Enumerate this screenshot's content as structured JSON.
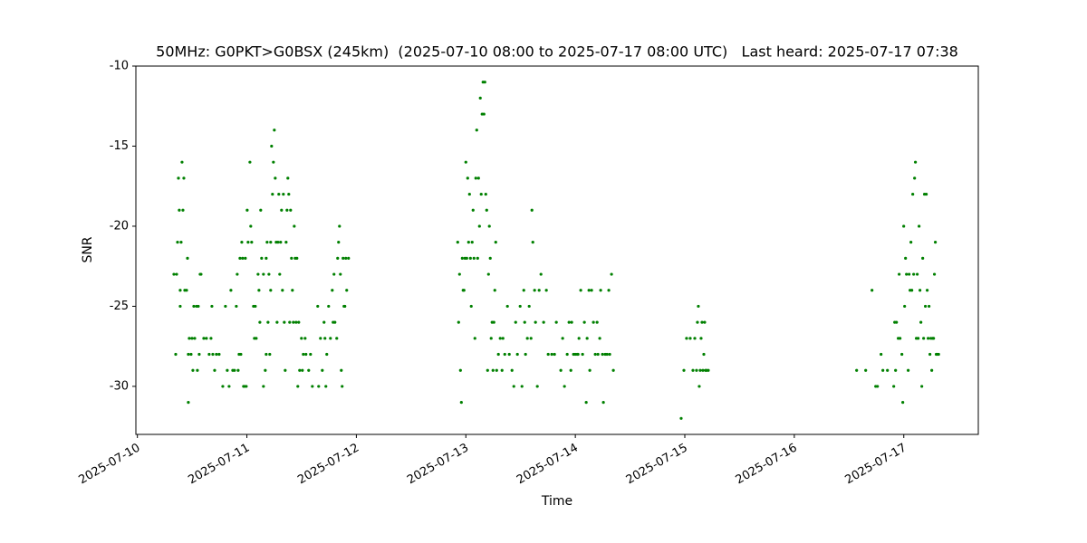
{
  "chart_data": {
    "type": "scatter",
    "title": "50MHz: G0PKT>G0BSX (245km)  (2025-07-10 08:00 to 2025-07-17 08:00 UTC)   Last heard: 2025-07-17 07:38",
    "x_label": "Time",
    "y_label": "SNR",
    "color": "#008000",
    "grid": false,
    "xlim": [
      "2025-07-09 23:40",
      "2025-07-17 16:20"
    ],
    "xticks": [
      "2025-07-10",
      "2025-07-11",
      "2025-07-12",
      "2025-07-13",
      "2025-07-14",
      "2025-07-15",
      "2025-07-16",
      "2025-07-17"
    ],
    "ylim": [
      -33,
      -10
    ],
    "yticks": [
      -30,
      -25,
      -20,
      -15,
      -10
    ],
    "x": [
      "2025-07-10 08:00",
      "2025-07-10 08:24",
      "2025-07-10 08:36",
      "2025-07-10 08:48",
      "2025-07-10 09:00",
      "2025-07-10 09:11",
      "2025-07-10 09:23",
      "2025-07-10 09:23",
      "2025-07-10 09:35",
      "2025-07-10 09:47",
      "2025-07-10 09:59",
      "2025-07-10 10:11",
      "2025-07-10 10:23",
      "2025-07-10 10:47",
      "2025-07-10 10:59",
      "2025-07-10 11:10",
      "2025-07-10 11:10",
      "2025-07-10 11:22",
      "2025-07-10 11:46",
      "2025-07-10 11:58",
      "2025-07-10 12:10",
      "2025-07-10 12:22",
      "2025-07-10 12:34",
      "2025-07-10 12:58",
      "2025-07-10 13:09",
      "2025-07-10 13:21",
      "2025-07-10 13:33",
      "2025-07-10 13:45",
      "2025-07-10 13:57",
      "2025-07-10 14:33",
      "2025-07-10 15:08",
      "2025-07-10 15:44",
      "2025-07-10 16:08",
      "2025-07-10 16:20",
      "2025-07-10 16:32",
      "2025-07-10 16:56",
      "2025-07-10 17:19",
      "2025-07-10 17:55",
      "2025-07-10 18:43",
      "2025-07-10 19:18",
      "2025-07-10 19:42",
      "2025-07-10 20:06",
      "2025-07-10 20:30",
      "2025-07-10 20:54",
      "2025-07-10 21:17",
      "2025-07-10 21:41",
      "2025-07-10 21:53",
      "2025-07-10 22:05",
      "2025-07-10 22:17",
      "2025-07-10 22:29",
      "2025-07-10 22:41",
      "2025-07-10 22:53",
      "2025-07-10 23:04",
      "2025-07-10 23:16",
      "2025-07-10 23:28",
      "2025-07-10 23:40",
      "2025-07-10 23:52",
      "2025-07-11 00:04",
      "2025-07-11 00:16",
      "2025-07-11 00:40",
      "2025-07-11 00:51",
      "2025-07-11 01:03",
      "2025-07-11 01:27",
      "2025-07-11 01:39",
      "2025-07-11 01:51",
      "2025-07-11 02:03",
      "2025-07-11 02:27",
      "2025-07-11 02:39",
      "2025-07-11 02:51",
      "2025-07-11 03:02",
      "2025-07-11 03:14",
      "2025-07-11 03:38",
      "2025-07-11 03:38",
      "2025-07-11 04:02",
      "2025-07-11 04:14",
      "2025-07-11 04:14",
      "2025-07-11 04:26",
      "2025-07-11 04:38",
      "2025-07-11 04:50",
      "2025-07-11 05:01",
      "2025-07-11 05:13",
      "2025-07-11 05:13",
      "2025-07-11 05:25",
      "2025-07-11 05:37",
      "2025-07-11 05:49",
      "2025-07-11 06:01",
      "2025-07-11 06:13",
      "2025-07-11 06:25",
      "2025-07-11 06:37",
      "2025-07-11 06:49",
      "2025-07-11 07:00",
      "2025-07-11 07:12",
      "2025-07-11 07:24",
      "2025-07-11 07:36",
      "2025-07-11 07:48",
      "2025-07-11 08:00",
      "2025-07-11 08:12",
      "2025-07-11 08:24",
      "2025-07-11 08:36",
      "2025-07-11 08:48",
      "2025-07-11 08:59",
      "2025-07-11 09:11",
      "2025-07-11 09:23",
      "2025-07-11 09:35",
      "2025-07-11 09:47",
      "2025-07-11 09:59",
      "2025-07-11 10:11",
      "2025-07-11 10:23",
      "2025-07-11 10:35",
      "2025-07-11 10:47",
      "2025-07-11 10:58",
      "2025-07-11 11:10",
      "2025-07-11 11:22",
      "2025-07-11 11:34",
      "2025-07-11 11:58",
      "2025-07-11 12:10",
      "2025-07-11 12:22",
      "2025-07-11 12:46",
      "2025-07-11 12:57",
      "2025-07-11 13:33",
      "2025-07-11 13:57",
      "2025-07-11 14:21",
      "2025-07-11 15:32",
      "2025-07-11 15:44",
      "2025-07-11 16:08",
      "2025-07-11 16:32",
      "2025-07-11 16:55",
      "2025-07-11 17:07",
      "2025-07-11 17:19",
      "2025-07-11 17:31",
      "2025-07-11 17:55",
      "2025-07-11 18:19",
      "2025-07-11 18:43",
      "2025-07-11 18:54",
      "2025-07-11 19:06",
      "2025-07-11 19:18",
      "2025-07-11 19:42",
      "2025-07-11 19:54",
      "2025-07-11 20:06",
      "2025-07-11 20:18",
      "2025-07-11 20:30",
      "2025-07-11 20:42",
      "2025-07-11 20:53",
      "2025-07-11 21:05",
      "2025-07-11 21:17",
      "2025-07-11 21:29",
      "2025-07-11 21:41",
      "2025-07-11 21:53",
      "2025-07-11 22:17",
      "2025-07-12 22:13",
      "2025-07-12 22:25",
      "2025-07-12 22:37",
      "2025-07-12 22:49",
      "2025-07-12 23:01",
      "2025-07-12 23:13",
      "2025-07-12 23:24",
      "2025-07-12 23:36",
      "2025-07-12 23:48",
      "2025-07-13 00:00",
      "2025-07-13 00:12",
      "2025-07-13 00:24",
      "2025-07-13 00:36",
      "2025-07-13 00:48",
      "2025-07-13 01:00",
      "2025-07-13 01:11",
      "2025-07-13 01:23",
      "2025-07-13 01:35",
      "2025-07-13 01:47",
      "2025-07-13 01:59",
      "2025-07-13 02:11",
      "2025-07-13 02:23",
      "2025-07-13 02:35",
      "2025-07-13 02:47",
      "2025-07-13 02:59",
      "2025-07-13 03:10",
      "2025-07-13 03:22",
      "2025-07-13 03:34",
      "2025-07-13 03:46",
      "2025-07-13 03:58",
      "2025-07-13 04:10",
      "2025-07-13 04:22",
      "2025-07-13 04:34",
      "2025-07-13 04:46",
      "2025-07-13 04:58",
      "2025-07-13 05:09",
      "2025-07-13 05:21",
      "2025-07-13 05:33",
      "2025-07-13 05:45",
      "2025-07-13 05:57",
      "2025-07-13 06:09",
      "2025-07-13 06:21",
      "2025-07-13 06:33",
      "2025-07-13 06:45",
      "2025-07-13 07:08",
      "2025-07-13 07:32",
      "2025-07-13 07:56",
      "2025-07-13 08:08",
      "2025-07-13 08:32",
      "2025-07-13 09:07",
      "2025-07-13 09:31",
      "2025-07-13 10:07",
      "2025-07-13 10:31",
      "2025-07-13 10:55",
      "2025-07-13 11:18",
      "2025-07-13 11:54",
      "2025-07-13 12:18",
      "2025-07-13 12:42",
      "2025-07-13 12:54",
      "2025-07-13 13:05",
      "2025-07-13 13:29",
      "2025-07-13 13:53",
      "2025-07-13 14:17",
      "2025-07-13 14:29",
      "2025-07-13 14:41",
      "2025-07-13 15:04",
      "2025-07-13 15:16",
      "2025-07-13 15:40",
      "2025-07-13 16:04",
      "2025-07-13 16:28",
      "2025-07-13 17:03",
      "2025-07-13 17:39",
      "2025-07-13 18:03",
      "2025-07-13 18:50",
      "2025-07-13 19:26",
      "2025-07-13 19:50",
      "2025-07-13 20:49",
      "2025-07-13 21:13",
      "2025-07-13 21:37",
      "2025-07-13 22:13",
      "2025-07-13 22:37",
      "2025-07-13 23:01",
      "2025-07-13 23:12",
      "2025-07-13 23:36",
      "2025-07-14 00:00",
      "2025-07-14 00:24",
      "2025-07-14 00:36",
      "2025-07-14 00:48",
      "2025-07-14 01:11",
      "2025-07-14 01:35",
      "2025-07-14 01:59",
      "2025-07-14 02:23",
      "2025-07-14 02:35",
      "2025-07-14 02:59",
      "2025-07-14 03:10",
      "2025-07-14 03:34",
      "2025-07-14 03:58",
      "2025-07-14 04:22",
      "2025-07-14 04:46",
      "2025-07-14 04:58",
      "2025-07-14 05:21",
      "2025-07-14 05:33",
      "2025-07-14 05:57",
      "2025-07-14 06:09",
      "2025-07-14 06:33",
      "2025-07-14 06:57",
      "2025-07-14 07:20",
      "2025-07-14 07:32",
      "2025-07-14 07:56",
      "2025-07-14 08:20",
      "2025-07-14 23:12",
      "2025-07-14 23:48",
      "2025-07-15 00:23",
      "2025-07-15 01:11",
      "2025-07-15 01:47",
      "2025-07-15 02:11",
      "2025-07-15 02:34",
      "2025-07-15 02:46",
      "2025-07-15 02:58",
      "2025-07-15 03:10",
      "2025-07-15 03:22",
      "2025-07-15 03:34",
      "2025-07-15 03:46",
      "2025-07-15 03:58",
      "2025-07-15 04:10",
      "2025-07-15 04:21",
      "2025-07-15 04:33",
      "2025-07-15 04:45",
      "2025-07-15 05:09",
      "2025-07-16 13:40",
      "2025-07-16 15:39",
      "2025-07-16 17:02",
      "2025-07-16 17:50",
      "2025-07-16 18:14",
      "2025-07-16 19:01",
      "2025-07-16 19:25",
      "2025-07-16 20:25",
      "2025-07-16 21:48",
      "2025-07-16 22:00",
      "2025-07-16 22:12",
      "2025-07-16 22:24",
      "2025-07-16 22:47",
      "2025-07-16 22:59",
      "2025-07-16 23:11",
      "2025-07-16 23:35",
      "2025-07-16 23:47",
      "2025-07-16 23:59",
      "2025-07-17 00:11",
      "2025-07-17 00:23",
      "2025-07-17 00:35",
      "2025-07-17 00:58",
      "2025-07-17 01:10",
      "2025-07-17 01:22",
      "2025-07-17 01:34",
      "2025-07-17 01:46",
      "2025-07-17 01:58",
      "2025-07-17 02:10",
      "2025-07-17 02:22",
      "2025-07-17 02:33",
      "2025-07-17 02:45",
      "2025-07-17 02:57",
      "2025-07-17 03:09",
      "2025-07-17 03:21",
      "2025-07-17 03:33",
      "2025-07-17 03:45",
      "2025-07-17 03:57",
      "2025-07-17 04:09",
      "2025-07-17 04:21",
      "2025-07-17 04:32",
      "2025-07-17 04:44",
      "2025-07-17 04:56",
      "2025-07-17 05:08",
      "2025-07-17 05:20",
      "2025-07-17 05:32",
      "2025-07-17 05:44",
      "2025-07-17 05:56",
      "2025-07-17 06:08",
      "2025-07-17 06:20",
      "2025-07-17 06:32",
      "2025-07-17 06:43",
      "2025-07-17 06:55",
      "2025-07-17 07:07",
      "2025-07-17 07:19",
      "2025-07-17 07:38"
    ],
    "values": [
      -23,
      -28,
      -23,
      -21,
      -17,
      -19,
      -25,
      -24,
      -21,
      -16,
      -19,
      -17,
      -24,
      -24,
      -22,
      -31,
      -28,
      -27,
      -28,
      -27,
      -29,
      -25,
      -27,
      -25,
      -29,
      -25,
      -28,
      -23,
      -23,
      -27,
      -27,
      -28,
      -27,
      -25,
      -28,
      -29,
      -28,
      -28,
      -30,
      -25,
      -29,
      -30,
      -24,
      -29,
      -29,
      -25,
      -23,
      -29,
      -28,
      -22,
      -28,
      -21,
      -22,
      -30,
      -30,
      -22,
      -30,
      -19,
      -21,
      -16,
      -20,
      -21,
      -25,
      -27,
      -25,
      -27,
      -23,
      -24,
      -26,
      -19,
      -22,
      -30,
      -23,
      -29,
      -22,
      -28,
      -21,
      -26,
      -23,
      -28,
      -24,
      -21,
      -15,
      -18,
      -16,
      -14,
      -17,
      -21,
      -26,
      -21,
      -18,
      -23,
      -21,
      -19,
      -24,
      -18,
      -26,
      -29,
      -21,
      -19,
      -17,
      -18,
      -26,
      -19,
      -22,
      -24,
      -26,
      -20,
      -22,
      -26,
      -22,
      -30,
      -26,
      -29,
      -27,
      -29,
      -28,
      -27,
      -28,
      -29,
      -28,
      -30,
      -25,
      -30,
      -27,
      -29,
      -26,
      -27,
      -30,
      -28,
      -25,
      -27,
      -24,
      -26,
      -23,
      -26,
      -27,
      -22,
      -21,
      -20,
      -23,
      -29,
      -30,
      -22,
      -25,
      -25,
      -22,
      -24,
      -22,
      -21,
      -26,
      -23,
      -29,
      -31,
      -22,
      -24,
      -24,
      -22,
      -16,
      -22,
      -17,
      -21,
      -18,
      -22,
      -25,
      -21,
      -19,
      -22,
      -27,
      -17,
      -14,
      -22,
      -17,
      -20,
      -12,
      -18,
      -13,
      -11,
      -13,
      -11,
      -18,
      -19,
      -29,
      -23,
      -20,
      -22,
      -27,
      -26,
      -29,
      -26,
      -24,
      -21,
      -29,
      -28,
      -27,
      -29,
      -27,
      -28,
      -25,
      -28,
      -29,
      -30,
      -26,
      -28,
      -25,
      -30,
      -24,
      -26,
      -28,
      -27,
      -25,
      -27,
      -19,
      -21,
      -24,
      -26,
      -30,
      -24,
      -23,
      -26,
      -24,
      -28,
      -28,
      -28,
      -26,
      -29,
      -27,
      -30,
      -28,
      -26,
      -29,
      -26,
      -28,
      -28,
      -28,
      -28,
      -27,
      -24,
      -28,
      -26,
      -31,
      -27,
      -24,
      -29,
      -24,
      -26,
      -28,
      -26,
      -28,
      -27,
      -24,
      -28,
      -31,
      -28,
      -28,
      -24,
      -28,
      -23,
      -29,
      -32,
      -29,
      -27,
      -27,
      -29,
      -27,
      -29,
      -26,
      -25,
      -30,
      -29,
      -27,
      -26,
      -29,
      -28,
      -26,
      -29,
      -29,
      -29,
      -29,
      -29,
      -24,
      -30,
      -30,
      -28,
      -29,
      -29,
      -30,
      -26,
      -29,
      -26,
      -27,
      -23,
      -27,
      -28,
      -31,
      -20,
      -25,
      -22,
      -23,
      -29,
      -23,
      -24,
      -21,
      -24,
      -18,
      -23,
      -17,
      -16,
      -27,
      -23,
      -27,
      -20,
      -24,
      -26,
      -30,
      -22,
      -27,
      -18,
      -25,
      -18,
      -24,
      -27,
      -25,
      -28,
      -27,
      -29,
      -27,
      -27,
      -23,
      -21,
      -28,
      -28,
      -28
    ]
  }
}
